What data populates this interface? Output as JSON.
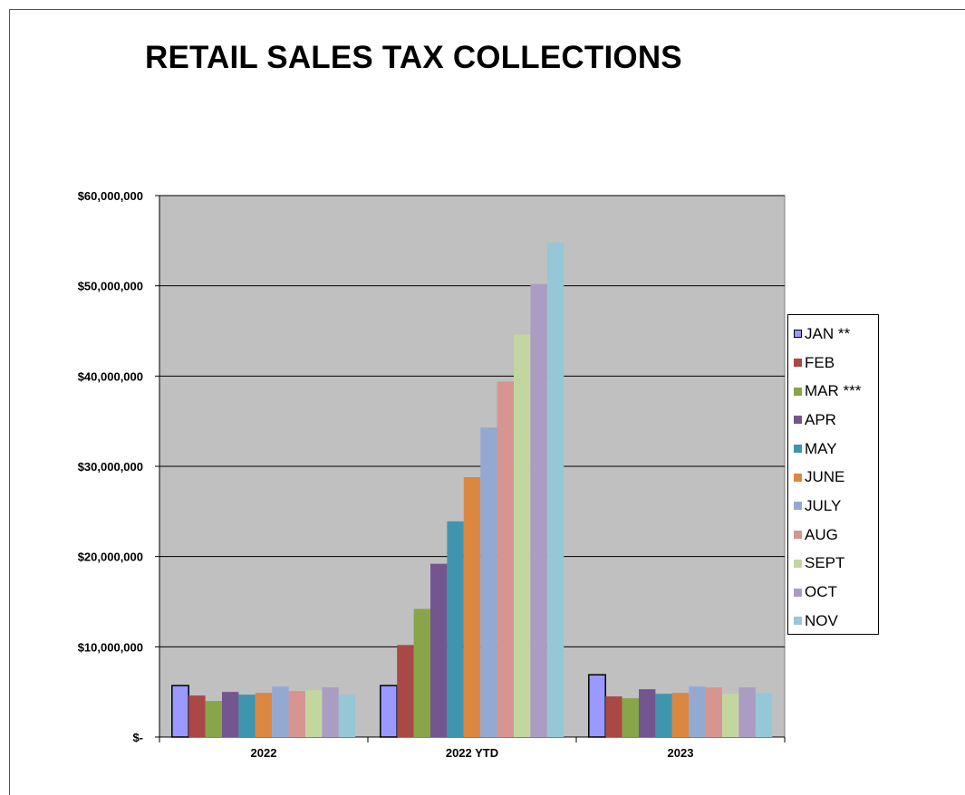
{
  "title": "RETAIL SALES TAX COLLECTIONS",
  "chart_data": {
    "type": "bar",
    "title": "RETAIL SALES TAX COLLECTIONS",
    "categories": [
      "2022",
      "2022 YTD",
      "2023"
    ],
    "ylim": [
      0,
      60000000
    ],
    "yticks": [
      {
        "value": 0,
        "label": "$-"
      },
      {
        "value": 10000000,
        "label": "$10,000,000"
      },
      {
        "value": 20000000,
        "label": "$20,000,000"
      },
      {
        "value": 30000000,
        "label": "$30,000,000"
      },
      {
        "value": 40000000,
        "label": "$40,000,000"
      },
      {
        "value": 50000000,
        "label": "$50,000,000"
      },
      {
        "value": 60000000,
        "label": "$60,000,000"
      }
    ],
    "grid": true,
    "plot_background": "#c0c0c0",
    "legend_position": "right",
    "series": [
      {
        "name": "JAN **",
        "color": "#9999ff",
        "outlined": true,
        "values": [
          5700000,
          5700000,
          6900000
        ]
      },
      {
        "name": "FEB",
        "color": "#a94845",
        "values": [
          4600000,
          10200000,
          4500000
        ]
      },
      {
        "name": "MAR ***",
        "color": "#88a54a",
        "values": [
          4000000,
          14200000,
          4300000
        ]
      },
      {
        "name": "APR",
        "color": "#735590",
        "values": [
          5000000,
          19200000,
          5300000
        ]
      },
      {
        "name": "MAY",
        "color": "#3f95ad",
        "values": [
          4700000,
          23900000,
          4800000
        ]
      },
      {
        "name": "JUNE",
        "color": "#dc8741",
        "values": [
          4900000,
          28800000,
          4900000
        ]
      },
      {
        "name": "JULY",
        "color": "#94a9d2",
        "values": [
          5600000,
          34300000,
          5600000
        ]
      },
      {
        "name": "AUG",
        "color": "#d69591",
        "values": [
          5100000,
          39400000,
          5500000
        ]
      },
      {
        "name": "SEPT",
        "color": "#c3d6a0",
        "values": [
          5200000,
          44600000,
          4800000
        ]
      },
      {
        "name": "OCT",
        "color": "#ab9cc4",
        "values": [
          5500000,
          50200000,
          5500000
        ]
      },
      {
        "name": "NOV",
        "color": "#96c7d6",
        "values": [
          4700000,
          54800000,
          4900000
        ]
      }
    ]
  }
}
